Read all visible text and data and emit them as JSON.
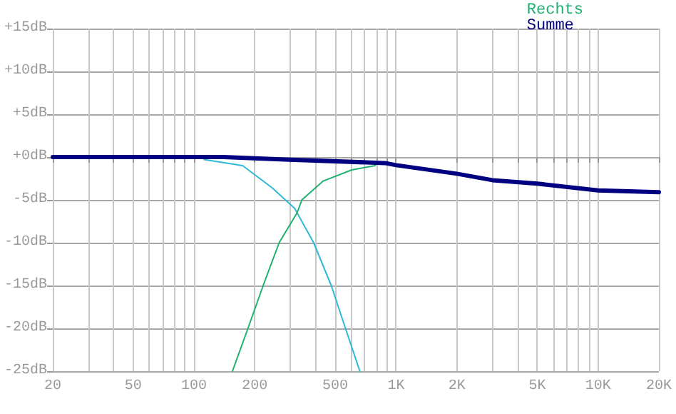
{
  "chart_data": {
    "type": "line",
    "log": "x",
    "grid": true,
    "legend": "top right",
    "marker": "none",
    "line_style": "solid",
    "xlim": [
      20,
      20000
    ],
    "xticks": [
      {
        "value": 20,
        "label": "20"
      },
      {
        "value": 30,
        "label": null
      },
      {
        "value": 40,
        "label": null
      },
      {
        "value": 50,
        "label": "50"
      },
      {
        "value": 60,
        "label": null
      },
      {
        "value": 70,
        "label": null
      },
      {
        "value": 80,
        "label": null
      },
      {
        "value": 90,
        "label": null
      },
      {
        "value": 100,
        "label": "100"
      },
      {
        "value": 200,
        "label": "200"
      },
      {
        "value": 300,
        "label": null
      },
      {
        "value": 400,
        "label": null
      },
      {
        "value": 500,
        "label": "500"
      },
      {
        "value": 600,
        "label": null
      },
      {
        "value": 700,
        "label": null
      },
      {
        "value": 800,
        "label": null
      },
      {
        "value": 900,
        "label": null
      },
      {
        "value": 1000,
        "label": "1K"
      },
      {
        "value": 2000,
        "label": "2K"
      },
      {
        "value": 3000,
        "label": null
      },
      {
        "value": 4000,
        "label": null
      },
      {
        "value": 5000,
        "label": "5K"
      },
      {
        "value": 6000,
        "label": null
      },
      {
        "value": 7000,
        "label": null
      },
      {
        "value": 8000,
        "label": null
      },
      {
        "value": 9000,
        "label": null
      },
      {
        "value": 10000,
        "label": "10K"
      },
      {
        "value": 20000,
        "label": "20K"
      }
    ],
    "ylim": [
      -25,
      15
    ],
    "yticks": [
      {
        "value": -25,
        "label": "-25dB"
      },
      {
        "value": -20,
        "label": "-20dB"
      },
      {
        "value": -15,
        "label": "-15dB"
      },
      {
        "value": -10,
        "label": "-10dB"
      },
      {
        "value": -5,
        "label": "-5dB"
      },
      {
        "value": 0,
        "label": "+0dB"
      },
      {
        "value": 5,
        "label": "+5dB"
      },
      {
        "value": 10,
        "label": "+10dB"
      },
      {
        "value": 15,
        "label": "+15dB"
      }
    ],
    "series": [
      {
        "color": "#30b8d8",
        "x": [
          112,
          174,
          244,
          315,
          391,
          478,
          562,
          662
        ],
        "values": [
          -0.3,
          -1,
          -3.6,
          -6,
          -10,
          -15,
          -20,
          -25
        ]
      },
      {
        "name": "Rechts",
        "color": "#20b070",
        "x": [
          155,
          185,
          220,
          264,
          324,
          342,
          436,
          604,
          791
        ],
        "values": [
          -25,
          -20,
          -15,
          -10,
          -6.5,
          -5,
          -2.8,
          -1.5,
          -1
        ]
      },
      {
        "name": "Summe",
        "color": "#000080",
        "x": [
          20,
          140,
          282,
          882,
          1000,
          2000,
          3000,
          5000,
          10000,
          20000
        ],
        "values": [
          0,
          0,
          -0.3,
          -0.7,
          -0.95,
          -1.95,
          -2.7,
          -3.1,
          -3.9,
          -4.1
        ]
      }
    ]
  }
}
